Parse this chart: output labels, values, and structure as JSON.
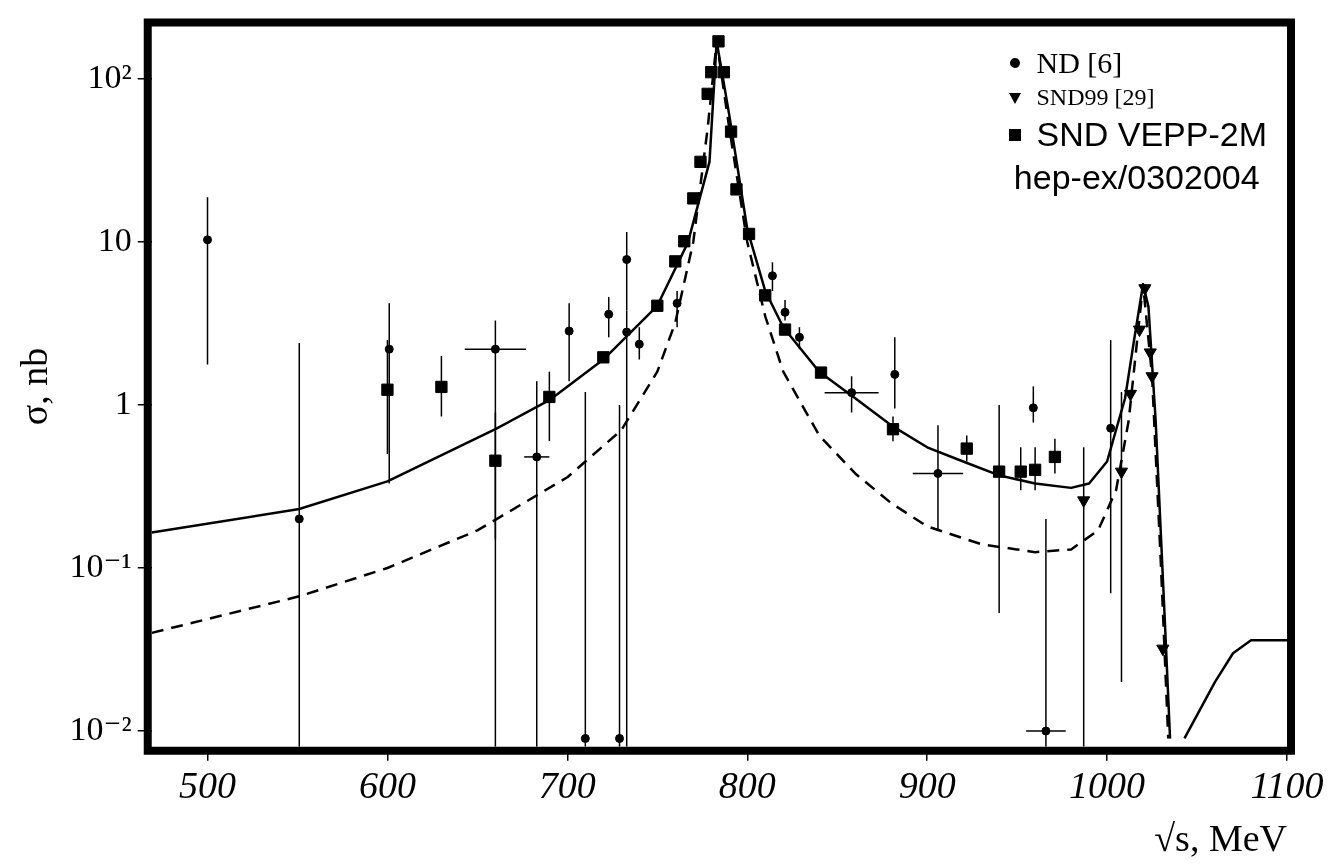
{
  "chart_data": {
    "type": "scatter",
    "xlabel": "√s, MeV",
    "ylabel": "σ, nb",
    "log": "y",
    "grid": false,
    "legend": "top right",
    "xlim": [
      469,
      1100
    ],
    "xticks": [
      500,
      600,
      700,
      800,
      900,
      1000,
      1100
    ],
    "ylim": [
      0.008,
      210
    ],
    "yticks": [
      {
        "value": 0.01,
        "label": "10⁻²"
      },
      {
        "value": 0.1,
        "label": "10⁻¹"
      },
      1,
      10,
      {
        "value": 100,
        "label": "10²"
      }
    ],
    "annotations": [
      "hep-ex/0302004"
    ],
    "series": [
      {
        "name": "ND [6]",
        "marker": "circle",
        "color": "#000000",
        "x": [
          500,
          551,
          601,
          660,
          683,
          701,
          710,
          723,
          729,
          733,
          733,
          740,
          761,
          814,
          821,
          829,
          858,
          882,
          906,
          959,
          966,
          1002
        ],
        "values": [
          10.3,
          0.2,
          2.2,
          2.2,
          0.48,
          2.84,
          0.009,
          3.6,
          0.009,
          7.8,
          2.8,
          2.36,
          4.2,
          6.2,
          3.7,
          2.6,
          1.19,
          1.54,
          0.38,
          0.96,
          0.01,
          0.72
        ],
        "errors": [
          [
            1.77,
            18.8
          ],
          [
            0.008,
            2.4
          ],
          [
            0.33,
            4.2
          ],
          [
            0.008,
            3.3
          ],
          [
            0.008,
            1.4
          ],
          [
            1.4,
            4.2
          ],
          [
            0.008,
            1.2
          ],
          [
            2.6,
            4.6
          ],
          [
            0.008,
            1.0
          ],
          [
            3.8,
            11.5
          ],
          [
            0.008,
            3.8
          ],
          [
            1.9,
            3.0
          ],
          [
            3.0,
            5.0
          ],
          [
            5.0,
            7.5
          ],
          [
            3.3,
            4.4
          ],
          [
            2.2,
            3.0
          ],
          [
            0.9,
            1.5
          ],
          [
            0.95,
            2.6
          ],
          [
            0.17,
            0.75
          ],
          [
            0.78,
            1.3
          ],
          [
            0.008,
            0.2
          ],
          [
            0.07,
            2.5
          ]
        ],
        "xerrors": [
          null,
          null,
          null,
          17,
          7,
          null,
          null,
          null,
          null,
          null,
          null,
          null,
          null,
          null,
          null,
          null,
          15,
          null,
          14,
          null,
          11,
          null
        ]
      },
      {
        "name": "SND99 [29]",
        "marker": "triangle",
        "color": "#000000",
        "x": [
          987,
          1008,
          1013,
          1018,
          1021,
          1024,
          1025,
          1031
        ],
        "values": [
          0.26,
          0.39,
          1.17,
          2.9,
          5.2,
          2.1,
          1.5,
          0.032
        ],
        "errors": [
          [
            0.008,
            0.55
          ],
          [
            0.02,
            1.2
          ],
          null,
          null,
          null,
          null,
          null,
          null
        ]
      },
      {
        "name": "SND VEPP-2M",
        "marker": "square",
        "color": "#000000",
        "x": [
          600,
          630,
          660,
          690,
          720,
          750,
          760,
          765,
          770,
          774,
          778,
          780,
          782,
          784,
          787,
          791,
          794,
          801,
          810,
          821,
          841,
          881,
          922,
          940,
          952,
          960,
          971
        ],
        "values": [
          1.24,
          1.29,
          0.455,
          1.12,
          1.96,
          4.06,
          7.6,
          10.1,
          18.5,
          31,
          81,
          110,
          null,
          170,
          110,
          47.5,
          21,
          11.2,
          4.7,
          2.9,
          1.58,
          0.71,
          0.54,
          0.39,
          0.39,
          0.4,
          0.48
        ],
        "errors": [
          [
            0.5,
            2.5
          ],
          [
            0.85,
            2.0
          ],
          [
            0.15,
            0.9
          ],
          [
            0.6,
            1.6
          ],
          null,
          null,
          null,
          null,
          null,
          null,
          null,
          null,
          null,
          null,
          null,
          null,
          null,
          null,
          null,
          null,
          null,
          [
            0.6,
            0.85
          ],
          [
            0.45,
            0.65
          ],
          [
            0.053,
            1.0
          ],
          [
            0.3,
            0.55
          ],
          [
            0.3,
            0.55
          ],
          [
            0.38,
            0.62
          ]
        ]
      },
      {
        "type": "line",
        "marker": "none",
        "line_style": "solid",
        "color": "#000000",
        "x": [
          469,
          551,
          600,
          660,
          690,
          720,
          750,
          767,
          779,
          783,
          790,
          800,
          810,
          820,
          840,
          860,
          880,
          900,
          920,
          940,
          960,
          980,
          990,
          1000,
          1010,
          1015,
          1020,
          1023,
          1027,
          1032,
          1035,
          1039,
          1043,
          1060,
          1070,
          1080,
          1100
        ],
        "values": [
          0.165,
          0.23,
          0.34,
          0.71,
          1.07,
          1.9,
          4.06,
          9.9,
          31,
          170,
          60,
          12,
          5,
          3,
          1.6,
          1.1,
          0.75,
          0.55,
          0.45,
          0.37,
          0.33,
          0.31,
          0.33,
          0.45,
          1.1,
          2.5,
          5.5,
          4,
          0.8,
          0.05,
          0.009,
          null,
          0.009,
          0.02,
          0.03,
          0.036,
          0.036
        ]
      },
      {
        "type": "line",
        "marker": "none",
        "line_style": "dashed",
        "color": "#000000",
        "x": [
          469,
          551,
          600,
          650,
          700,
          730,
          750,
          760,
          770,
          778,
          783,
          790,
          800,
          810,
          820,
          840,
          860,
          880,
          900,
          930,
          960,
          980,
          995,
          1005,
          1012,
          1020,
          1025,
          1030,
          1034
        ],
        "values": [
          0.04,
          0.067,
          0.1,
          0.17,
          0.36,
          0.7,
          1.6,
          3.2,
          10,
          50,
          170,
          50,
          10,
          3.5,
          1.6,
          0.65,
          0.38,
          0.25,
          0.18,
          0.14,
          0.125,
          0.13,
          0.17,
          0.3,
          0.8,
          5.5,
          1.5,
          0.1,
          0.009
        ]
      }
    ]
  }
}
